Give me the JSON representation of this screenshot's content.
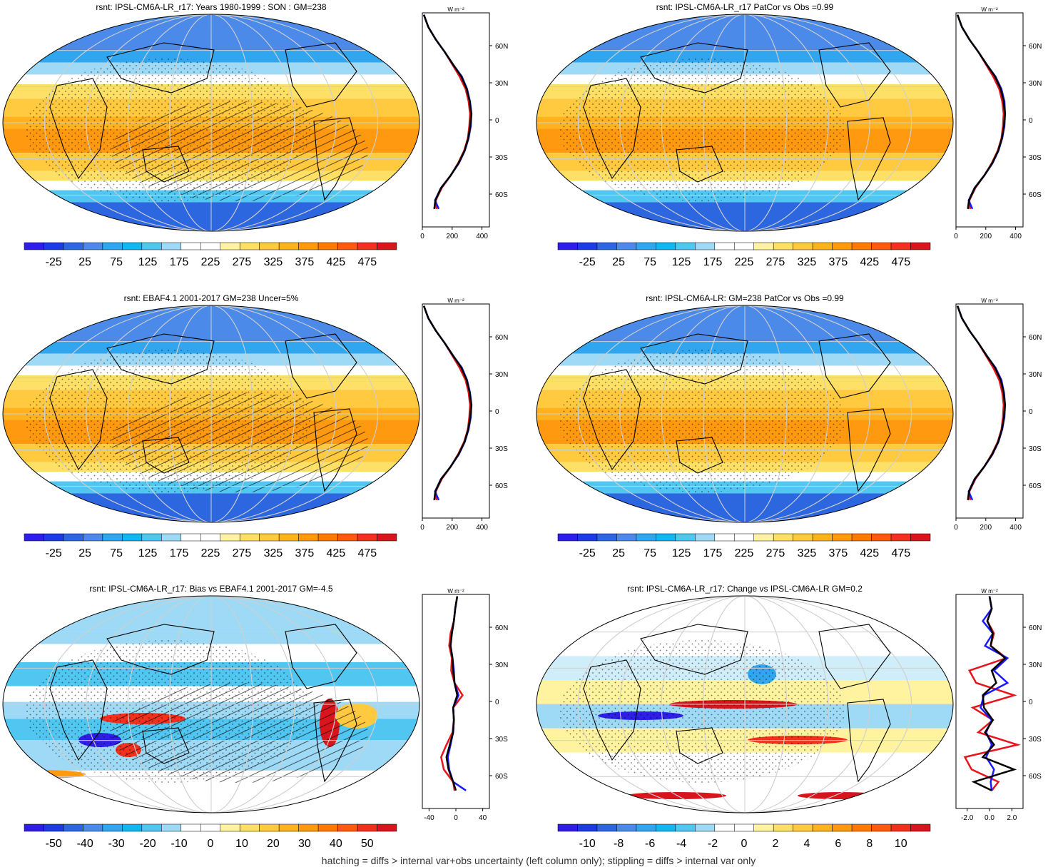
{
  "footnote": "hatching = diffs > internal var+obs uncertainty (left column only); stippling = diffs > internal var only",
  "zonal_unit": "W m⁻²",
  "lat_labels": [
    "60N",
    "30N",
    "0",
    "30S",
    "60S"
  ],
  "colors": {
    "abs_scale": [
      "#2f1fe6",
      "#1c3be0",
      "#2d67e0",
      "#4b8ae8",
      "#31a6ee",
      "#14b6f0",
      "#51c6f0",
      "#9edaf5",
      "#ffffff",
      "#ffffff",
      "#fff3a0",
      "#ffe066",
      "#ffc940",
      "#ffb220",
      "#ff9a10",
      "#ff7a00",
      "#ff5a10",
      "#f2301c",
      "#d8141c"
    ],
    "bias_scale": [
      "#2f1fe6",
      "#1c3be0",
      "#2d67e0",
      "#4b8ae8",
      "#31a6ee",
      "#14b6f0",
      "#51c6f0",
      "#9edaf5",
      "#ffffff",
      "#ffffff",
      "#fff3a0",
      "#ffe066",
      "#ffc940",
      "#ffb220",
      "#ff9a10",
      "#ff7a00",
      "#ff5a10",
      "#f2301c",
      "#d8141c"
    ],
    "line_obs": "#e8141c",
    "line_model": "#1a1aff",
    "line_ref": "#000000"
  },
  "panels": [
    {
      "id": "p1",
      "kind": "abs",
      "title": "rsnt: IPSL-CM6A-LR_r17: Years 1980-1999 : SON : GM=238",
      "colorbar_ticks": [
        "-25",
        "25",
        "75",
        "125",
        "175",
        "225",
        "275",
        "325",
        "375",
        "425",
        "475"
      ],
      "zonal_ticks": [
        "0",
        "200",
        "400"
      ]
    },
    {
      "id": "p2",
      "kind": "abs",
      "title": "rsnt: IPSL-CM6A-LR_r17 PatCor vs Obs =0.99",
      "colorbar_ticks": [
        "-25",
        "25",
        "75",
        "125",
        "175",
        "225",
        "275",
        "325",
        "375",
        "425",
        "475"
      ],
      "zonal_ticks": [
        "0",
        "200",
        "400"
      ]
    },
    {
      "id": "p3",
      "kind": "abs",
      "title": "rsnt: EBAF4.1 2001-2017 GM=238 Uncer=5%",
      "colorbar_ticks": [
        "-25",
        "25",
        "75",
        "125",
        "175",
        "225",
        "275",
        "325",
        "375",
        "425",
        "475"
      ],
      "zonal_ticks": [
        "0",
        "200",
        "400"
      ]
    },
    {
      "id": "p4",
      "kind": "abs",
      "title": "rsnt: IPSL-CM6A-LR: GM=238 PatCor vs Obs =0.99",
      "colorbar_ticks": [
        "-25",
        "25",
        "75",
        "125",
        "175",
        "225",
        "275",
        "325",
        "375",
        "425",
        "475"
      ],
      "zonal_ticks": [
        "0",
        "200",
        "400"
      ]
    },
    {
      "id": "p5",
      "kind": "bias",
      "title": "rsnt: IPSL-CM6A-LR_r17: Bias vs EBAF4.1 2001-2017  GM=-4.5",
      "colorbar_ticks": [
        "-50",
        "-40",
        "-30",
        "-20",
        "-10",
        "0",
        "10",
        "20",
        "30",
        "40",
        "50"
      ],
      "zonal_ticks": [
        "-40",
        "0",
        "40"
      ]
    },
    {
      "id": "p6",
      "kind": "change",
      "title": "rsnt: IPSL-CM6A-LR_r17: Change vs IPSL-CM6A-LR GM=0.2",
      "colorbar_ticks": [
        "-10",
        "-8",
        "-6",
        "-4",
        "-2",
        "0",
        "2",
        "4",
        "6",
        "8",
        "10"
      ],
      "zonal_ticks": [
        "-2.0",
        "0.0",
        "2.0"
      ]
    }
  ],
  "chart_data": [
    {
      "type": "heatmap",
      "title": "rsnt: IPSL-CM6A-LR_r17: Years 1980-1999 : SON : GM=238",
      "projection": "Robinson",
      "colorbar_range": [
        -50,
        500
      ],
      "colorbar_ticks": [
        -25,
        25,
        75,
        125,
        175,
        225,
        275,
        325,
        375,
        425,
        475
      ],
      "zonal_mean": {
        "x_range": [
          0,
          450
        ],
        "x_ticks": [
          0,
          200,
          400
        ],
        "y_ticks": [
          "60N",
          "30N",
          "0",
          "30S",
          "60S"
        ],
        "lat": [
          85,
          75,
          65,
          55,
          45,
          35,
          25,
          15,
          5,
          -5,
          -15,
          -25,
          -35,
          -45,
          -55,
          -65,
          -72
        ],
        "series": [
          {
            "color": "red",
            "values": [
              10,
              40,
              90,
              150,
              200,
              250,
              290,
              310,
              320,
              315,
              305,
              280,
              240,
              190,
              130,
              90,
              95
            ]
          },
          {
            "color": "blue",
            "values": [
              10,
              40,
              90,
              150,
              205,
              265,
              300,
              320,
              330,
              325,
              310,
              285,
              245,
              190,
              125,
              85,
              110
            ]
          },
          {
            "color": "black",
            "values": [
              10,
              40,
              90,
              150,
              205,
              262,
              298,
              318,
              328,
              322,
              308,
              283,
              243,
              189,
              126,
              87,
              80
            ]
          }
        ]
      }
    },
    {
      "type": "heatmap",
      "title": "rsnt: IPSL-CM6A-LR_r17 PatCor vs Obs =0.99",
      "projection": "Robinson",
      "colorbar_range": [
        -50,
        500
      ],
      "colorbar_ticks": [
        -25,
        25,
        75,
        125,
        175,
        225,
        275,
        325,
        375,
        425,
        475
      ],
      "zonal_mean": {
        "x_range": [
          0,
          450
        ],
        "x_ticks": [
          0,
          200,
          400
        ],
        "y_ticks": [
          "60N",
          "30N",
          "0",
          "30S",
          "60S"
        ],
        "lat": [
          85,
          75,
          65,
          55,
          45,
          35,
          25,
          15,
          5,
          -5,
          -15,
          -25,
          -35,
          -45,
          -55,
          -65,
          -72
        ],
        "series": [
          {
            "color": "red",
            "values": [
              10,
              40,
              90,
              150,
              200,
              250,
              290,
              310,
              320,
              315,
              305,
              280,
              240,
              190,
              130,
              90,
              95
            ]
          },
          {
            "color": "blue",
            "values": [
              10,
              40,
              90,
              150,
              205,
              265,
              305,
              325,
              330,
              325,
              310,
              285,
              245,
              190,
              125,
              85,
              110
            ]
          },
          {
            "color": "black",
            "values": [
              10,
              40,
              90,
              150,
              205,
              262,
              300,
              320,
              328,
              322,
              308,
              283,
              243,
              189,
              126,
              87,
              80
            ]
          }
        ]
      }
    },
    {
      "type": "heatmap",
      "title": "rsnt: EBAF4.1 2001-2017 GM=238 Uncer=5%",
      "projection": "Robinson",
      "colorbar_range": [
        -50,
        500
      ],
      "colorbar_ticks": [
        -25,
        25,
        75,
        125,
        175,
        225,
        275,
        325,
        375,
        425,
        475
      ],
      "zonal_mean": {
        "x_range": [
          0,
          450
        ],
        "x_ticks": [
          0,
          200,
          400
        ],
        "y_ticks": [
          "60N",
          "30N",
          "0",
          "30S",
          "60S"
        ],
        "lat": [
          85,
          75,
          65,
          55,
          45,
          35,
          25,
          15,
          5,
          -5,
          -15,
          -25,
          -35,
          -45,
          -55,
          -65,
          -72
        ],
        "series": [
          {
            "color": "red",
            "values": [
              10,
              40,
              90,
              150,
              200,
              250,
              290,
              310,
              320,
              315,
              305,
              280,
              240,
              190,
              130,
              90,
              95
            ]
          },
          {
            "color": "blue",
            "values": [
              10,
              40,
              90,
              150,
              205,
              265,
              300,
              320,
              330,
              325,
              310,
              285,
              245,
              190,
              125,
              85,
              110
            ]
          },
          {
            "color": "black",
            "values": [
              10,
              40,
              90,
              150,
              205,
              262,
              298,
              318,
              328,
              322,
              308,
              283,
              243,
              189,
              126,
              87,
              80
            ]
          }
        ]
      }
    },
    {
      "type": "heatmap",
      "title": "rsnt: IPSL-CM6A-LR: GM=238 PatCor vs Obs =0.99",
      "projection": "Robinson",
      "colorbar_range": [
        -50,
        500
      ],
      "colorbar_ticks": [
        -25,
        25,
        75,
        125,
        175,
        225,
        275,
        325,
        375,
        425,
        475
      ],
      "zonal_mean": {
        "x_range": [
          0,
          450
        ],
        "x_ticks": [
          0,
          200,
          400
        ],
        "y_ticks": [
          "60N",
          "30N",
          "0",
          "30S",
          "60S"
        ],
        "lat": [
          85,
          75,
          65,
          55,
          45,
          35,
          25,
          15,
          5,
          -5,
          -15,
          -25,
          -35,
          -45,
          -55,
          -65,
          -72
        ],
        "series": [
          {
            "color": "red",
            "values": [
              10,
              40,
              90,
              150,
              200,
              250,
              290,
              310,
              320,
              315,
              305,
              280,
              240,
              190,
              130,
              90,
              95
            ]
          },
          {
            "color": "blue",
            "values": [
              10,
              40,
              90,
              150,
              205,
              265,
              305,
              322,
              330,
              325,
              310,
              285,
              245,
              190,
              125,
              85,
              110
            ]
          },
          {
            "color": "black",
            "values": [
              10,
              40,
              90,
              150,
              205,
              262,
              300,
              320,
              328,
              322,
              308,
              283,
              243,
              189,
              126,
              87,
              80
            ]
          }
        ]
      }
    },
    {
      "type": "heatmap",
      "title": "rsnt: IPSL-CM6A-LR_r17: Bias vs EBAF4.1 2001-2017  GM=-4.5",
      "projection": "Robinson",
      "colorbar_range": [
        -55,
        55
      ],
      "colorbar_ticks": [
        -50,
        -40,
        -30,
        -20,
        -10,
        0,
        10,
        20,
        30,
        40,
        50
      ],
      "zonal_mean": {
        "x_range": [
          -50,
          50
        ],
        "x_ticks": [
          -40,
          0,
          40
        ],
        "y_ticks": [
          "60N",
          "30N",
          "0",
          "30S",
          "60S"
        ],
        "lat": [
          85,
          75,
          65,
          55,
          45,
          35,
          25,
          15,
          5,
          -5,
          -15,
          -25,
          -35,
          -45,
          -55,
          -65,
          -72
        ],
        "series": [
          {
            "color": "red",
            "values": [
              2,
              -1,
              -3,
              -8,
              -10,
              -6,
              -7,
              -2,
              10,
              -4,
              -3,
              -5,
              -14,
              -22,
              -18,
              -4,
              -2
            ]
          },
          {
            "color": "blue",
            "values": [
              2,
              -1,
              -3,
              -6,
              -8,
              -5,
              -3,
              -2,
              4,
              -4,
              -3,
              -4,
              -8,
              -12,
              -10,
              -4,
              15
            ]
          },
          {
            "color": "black",
            "values": [
              2,
              -1,
              -3,
              -6,
              -8,
              -5,
              -4,
              -2,
              2,
              -4,
              -3,
              -4,
              -9,
              -14,
              -11,
              -4,
              0
            ]
          }
        ]
      }
    },
    {
      "type": "heatmap",
      "title": "rsnt: IPSL-CM6A-LR_r17: Change vs IPSL-CM6A-LR GM=0.2",
      "projection": "Robinson",
      "colorbar_range": [
        -11,
        11
      ],
      "colorbar_ticks": [
        -10,
        -8,
        -6,
        -4,
        -2,
        0,
        2,
        4,
        6,
        8,
        10
      ],
      "zonal_mean": {
        "x_range": [
          -3,
          3
        ],
        "x_ticks": [
          -2.0,
          0.0,
          2.0
        ],
        "y_ticks": [
          "60N",
          "30N",
          "0",
          "30S",
          "60S"
        ],
        "lat": [
          85,
          75,
          65,
          55,
          45,
          35,
          25,
          15,
          5,
          -5,
          -15,
          -25,
          -35,
          -45,
          -55,
          -65,
          -72
        ],
        "series": [
          {
            "color": "red",
            "values": [
              0.0,
              0.2,
              -0.2,
              0.4,
              0.1,
              1.5,
              -1.8,
              -1.2,
              2.2,
              -1.5,
              0.3,
              -1.0,
              2.5,
              -2.2,
              -1.6,
              0.8,
              0.2
            ]
          },
          {
            "color": "blue",
            "values": [
              0.0,
              0.2,
              -0.6,
              0.3,
              -0.4,
              1.6,
              0.4,
              1.6,
              -0.5,
              -0.8,
              0.2,
              -0.3,
              0.2,
              -0.3,
              0.4,
              0.1,
              0.2
            ]
          },
          {
            "color": "black",
            "values": [
              0.0,
              0.2,
              -0.2,
              0.3,
              0.1,
              1.4,
              0.2,
              0.6,
              -0.6,
              -0.5,
              0.3,
              -0.4,
              0.4,
              -0.6,
              2.2,
              -1.4,
              0.2
            ]
          }
        ]
      }
    }
  ]
}
